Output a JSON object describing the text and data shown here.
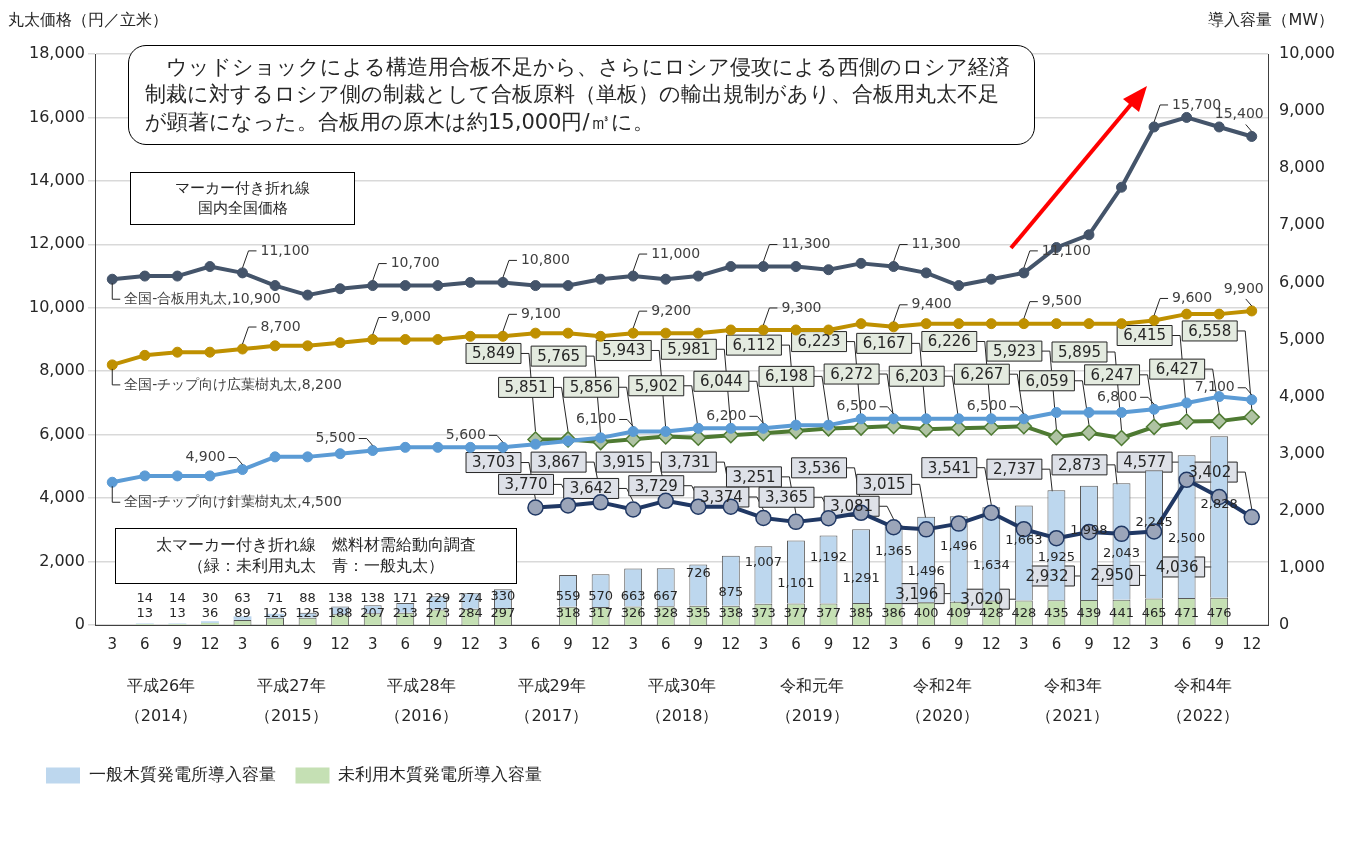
{
  "chart_data": {
    "type": "bar",
    "ylabel": "丸太価格（円／立米）",
    "y2label": "導入容量（MW）",
    "categories": [
      "3",
      "6",
      "9",
      "12",
      "3",
      "6",
      "9",
      "12",
      "3",
      "6",
      "9",
      "12",
      "3",
      "6",
      "9",
      "12",
      "3",
      "6",
      "9",
      "12",
      "3",
      "6",
      "9",
      "12",
      "3",
      "6",
      "9",
      "12",
      "3",
      "6",
      "9",
      "12",
      "3",
      "6",
      "9",
      "12"
    ],
    "stacked": true,
    "ylim": [
      0,
      18000
    ],
    "yticks": [
      {
        "value": 0,
        "label": "0"
      },
      {
        "value": 2000,
        "label": "2,000"
      },
      {
        "value": 4000,
        "label": "4,000"
      },
      {
        "value": 6000,
        "label": "6,000"
      },
      {
        "value": 8000,
        "label": "8,000"
      },
      {
        "value": 10000,
        "label": "10,000"
      },
      {
        "value": 12000,
        "label": "12,000"
      },
      {
        "value": 14000,
        "label": "14,000"
      },
      {
        "value": 16000,
        "label": "16,000"
      },
      {
        "value": 18000,
        "label": "18,000"
      }
    ],
    "y2lim": [
      0,
      10000
    ],
    "y2ticks": [
      {
        "value": 0,
        "label": "0"
      },
      {
        "value": 1000,
        "label": "1,000"
      },
      {
        "value": 2000,
        "label": "2,000"
      },
      {
        "value": 3000,
        "label": "3,000"
      },
      {
        "value": 4000,
        "label": "4,000"
      },
      {
        "value": 5000,
        "label": "5,000"
      },
      {
        "value": 6000,
        "label": "6,000"
      },
      {
        "value": 7000,
        "label": "7,000"
      },
      {
        "value": 8000,
        "label": "8,000"
      },
      {
        "value": 9000,
        "label": "9,000"
      },
      {
        "value": 10000,
        "label": "10,000"
      }
    ],
    "grid": "y",
    "legend": "bottom left",
    "annotations": [
      "　ウッドショックによる構造用合板不足から、さらにロシア侵攻による西側のロシア経済制裁に対するロシア側の制裁として合板原料（単板）の輸出規制があり、合板用丸太不足が顕著になった。合板用の原木は約15,000円/㎥に。",
      "マーカー付き折れ線国内全国価格",
      "太マーカー付き折れ線　燃料材需給動向調査（緑：未利用丸太　青：一般丸太）",
      "平成26年（2014）",
      "平成27年（2015）",
      "平成28年（2016）",
      "平成29年（2017）",
      "平成30年（2018）",
      "令和元年（2019）",
      "令和2年（2020）",
      "令和3年（2021）",
      "令和4年（2022）"
    ],
    "series": [
      {
        "name": "未利用木質発電所導入容量",
        "color": "#c5e0b4",
        "axis": "y2",
        "values": [
          null,
          13,
          13,
          36,
          89,
          125,
          125,
          188,
          207,
          213,
          273,
          284,
          297,
          null,
          318,
          317,
          326,
          328,
          335,
          338,
          373,
          377,
          377,
          385,
          386,
          400,
          409,
          428,
          428,
          435,
          439,
          441,
          465,
          471,
          476,
          null
        ],
        "value_labels": [
          null,
          "13",
          "13",
          "36",
          "89",
          "125",
          "125",
          "188",
          "207",
          "213",
          "273",
          "284",
          "297",
          null,
          "318",
          "317",
          "326",
          "328",
          "335",
          "338",
          "373",
          "377",
          "377",
          "385",
          "386",
          "400",
          "409",
          "428",
          "428",
          "435",
          "439",
          "441",
          "465",
          "471",
          "476",
          null
        ]
      },
      {
        "name": "一般木質発電所導入容量",
        "color": "#bdd7ee",
        "axis": "y2",
        "values": [
          null,
          14,
          14,
          30,
          63,
          71,
          88,
          138,
          138,
          171,
          229,
          274,
          330,
          null,
          559,
          570,
          663,
          667,
          726,
          875,
          1007,
          1101,
          1192,
          1291,
          1365,
          1496,
          1496,
          1634,
          1663,
          1925,
          1998,
          2043,
          2245,
          2500,
          2828,
          null
        ],
        "value_labels": [
          null,
          "14",
          "14",
          "30",
          "63",
          "71",
          "88",
          "138",
          "138",
          "171",
          "229",
          "274",
          "330",
          null,
          "559",
          "570",
          "663",
          "667",
          "726",
          "875",
          "1,007",
          "1,101",
          "1,192",
          "1,291",
          "1,365",
          "1,496",
          "1,496",
          "1,634",
          "1,663",
          "1,925",
          "1,998",
          "2,043",
          "2,245",
          "2,500",
          "2,828",
          null
        ]
      },
      {
        "type": "line",
        "name": "全国-合板用丸太,",
        "color": "#44546a",
        "marker": "circle",
        "values": [
          10900,
          11000,
          11000,
          11300,
          11100,
          10700,
          10400,
          10600,
          10700,
          10700,
          10700,
          10800,
          10800,
          10700,
          10700,
          10900,
          11000,
          10900,
          11000,
          11300,
          11300,
          11300,
          11200,
          11400,
          11300,
          11100,
          10700,
          10900,
          11100,
          11900,
          12300,
          13800,
          15700,
          16000,
          15700,
          15400
        ],
        "value_labels": [
          "10,900",
          null,
          null,
          null,
          "11,100",
          null,
          null,
          null,
          "10,700",
          null,
          null,
          null,
          "10,800",
          null,
          null,
          null,
          "11,000",
          null,
          null,
          null,
          "11,300",
          null,
          null,
          null,
          "11,300",
          null,
          null,
          null,
          "11,100",
          null,
          null,
          null,
          "15,700",
          null,
          null,
          "15,400"
        ]
      },
      {
        "type": "line",
        "name": "全国-チップ向け広葉樹丸太,",
        "color": "#bf9000",
        "marker": "circle",
        "values": [
          8200,
          8500,
          8600,
          8600,
          8700,
          8800,
          8800,
          8900,
          9000,
          9000,
          9000,
          9100,
          9100,
          9200,
          9200,
          9100,
          9200,
          9200,
          9200,
          9300,
          9300,
          9300,
          9300,
          9500,
          9400,
          9500,
          9500,
          9500,
          9500,
          9500,
          9500,
          9500,
          9600,
          9800,
          9800,
          9900
        ],
        "value_labels": [
          "8,200",
          null,
          null,
          null,
          "8,700",
          null,
          null,
          null,
          "9,000",
          null,
          null,
          null,
          "9,100",
          null,
          null,
          null,
          "9,200",
          null,
          null,
          null,
          "9,300",
          null,
          null,
          null,
          "9,400",
          null,
          null,
          null,
          "9,500",
          null,
          null,
          null,
          "9,600",
          null,
          null,
          "9,900"
        ]
      },
      {
        "type": "line",
        "name": "全国-チップ向け針葉樹丸太,",
        "color": "#5b9bd5",
        "marker": "circle",
        "values": [
          4500,
          4700,
          4700,
          4700,
          4900,
          5300,
          5300,
          5400,
          5500,
          5600,
          5600,
          5600,
          5600,
          5700,
          5800,
          5900,
          6100,
          6100,
          6200,
          6200,
          6200,
          6300,
          6300,
          6500,
          6500,
          6500,
          6500,
          6500,
          6500,
          6700,
          6700,
          6700,
          6800,
          7000,
          7200,
          7100
        ],
        "value_labels": [
          "4,500",
          null,
          null,
          null,
          "4,900",
          null,
          null,
          null,
          "5,500",
          null,
          null,
          null,
          "5,600",
          null,
          null,
          null,
          "6,100",
          null,
          null,
          null,
          "6,200",
          null,
          null,
          null,
          "6,500",
          null,
          null,
          null,
          "6,500",
          null,
          null,
          null,
          "6,800",
          null,
          null,
          "7,100"
        ]
      },
      {
        "type": "line",
        "color": "#4e7a32",
        "marker": "diamond",
        "values": [
          null,
          null,
          null,
          null,
          null,
          null,
          null,
          null,
          null,
          null,
          null,
          null,
          null,
          5849,
          5851,
          5765,
          5856,
          5943,
          5902,
          5981,
          6044,
          6112,
          6198,
          6223,
          6272,
          6167,
          6203,
          6226,
          6267,
          5923,
          6059,
          5895,
          6247,
          6415,
          6427,
          6558
        ],
        "value_labels": [
          null,
          null,
          null,
          null,
          null,
          null,
          null,
          null,
          null,
          null,
          null,
          null,
          null,
          "5,849",
          "5,851",
          "5,765",
          "5,856",
          "5,943",
          "5,902",
          "5,981",
          "6,044",
          "6,112",
          "6,198",
          "6,223",
          "6,272",
          "6,167",
          "6,203",
          "6,226",
          "6,267",
          "5,923",
          "6,059",
          "5,895",
          "6,247",
          "6,415",
          "6,427",
          "6,558"
        ]
      },
      {
        "type": "line",
        "color": "#203864",
        "marker": "circle",
        "values": [
          null,
          null,
          null,
          null,
          null,
          null,
          null,
          null,
          null,
          null,
          null,
          null,
          null,
          3703,
          3770,
          3867,
          3642,
          3915,
          3729,
          3731,
          3374,
          3251,
          3365,
          3536,
          3081,
          3015,
          3196,
          3541,
          3020,
          2737,
          2932,
          2873,
          2950,
          4577,
          4036,
          3402
        ],
        "value_labels": [
          null,
          null,
          null,
          null,
          null,
          null,
          null,
          null,
          null,
          null,
          null,
          null,
          null,
          "3,703",
          "3,770",
          "3,867",
          "3,642",
          "3,915",
          "3,729",
          "3,731",
          "3,374",
          "3,251",
          "3,365",
          "3,536",
          "3,081",
          "3,015",
          "3,196",
          "3,541",
          "3,020",
          "2,737",
          "2,932",
          "2,873",
          "2,950",
          "4,577",
          "4,036",
          "3,402"
        ]
      }
    ]
  }
}
